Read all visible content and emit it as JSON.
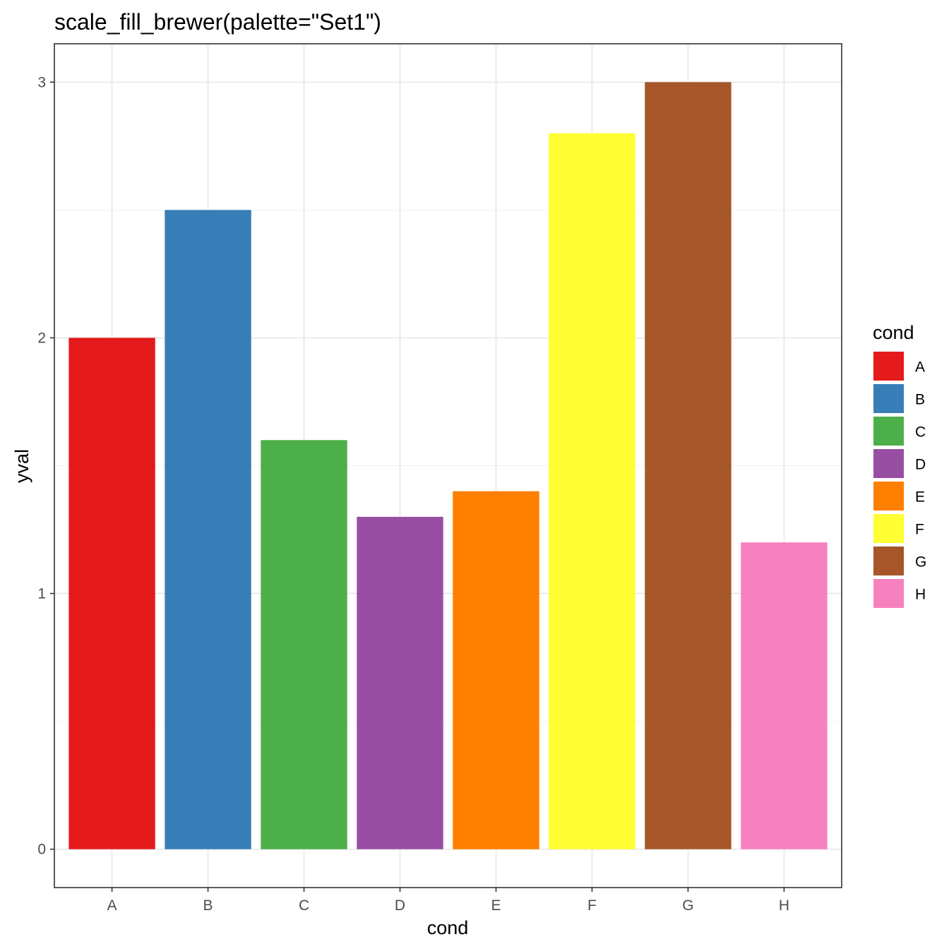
{
  "chart_data": {
    "type": "bar",
    "title": "scale_fill_brewer(palette=\"Set1\")",
    "xlabel": "cond",
    "ylabel": "yval",
    "categories": [
      "A",
      "B",
      "C",
      "D",
      "E",
      "F",
      "G",
      "H"
    ],
    "values": [
      2.0,
      2.5,
      1.6,
      1.3,
      1.4,
      2.8,
      3.0,
      1.2
    ],
    "colors": [
      "#E41A1C",
      "#377EB8",
      "#4DAF4A",
      "#984EA3",
      "#FF7F00",
      "#FFFF33",
      "#A65628",
      "#F781BF"
    ],
    "ylim": [
      -0.15,
      3.15
    ],
    "yticks": [
      0,
      1,
      2,
      3
    ],
    "ytick_labels": [
      "0",
      "1",
      "2",
      "3"
    ],
    "grid": true,
    "legend": {
      "title": "cond",
      "position": "right",
      "entries": [
        "A",
        "B",
        "C",
        "D",
        "E",
        "F",
        "G",
        "H"
      ]
    }
  }
}
